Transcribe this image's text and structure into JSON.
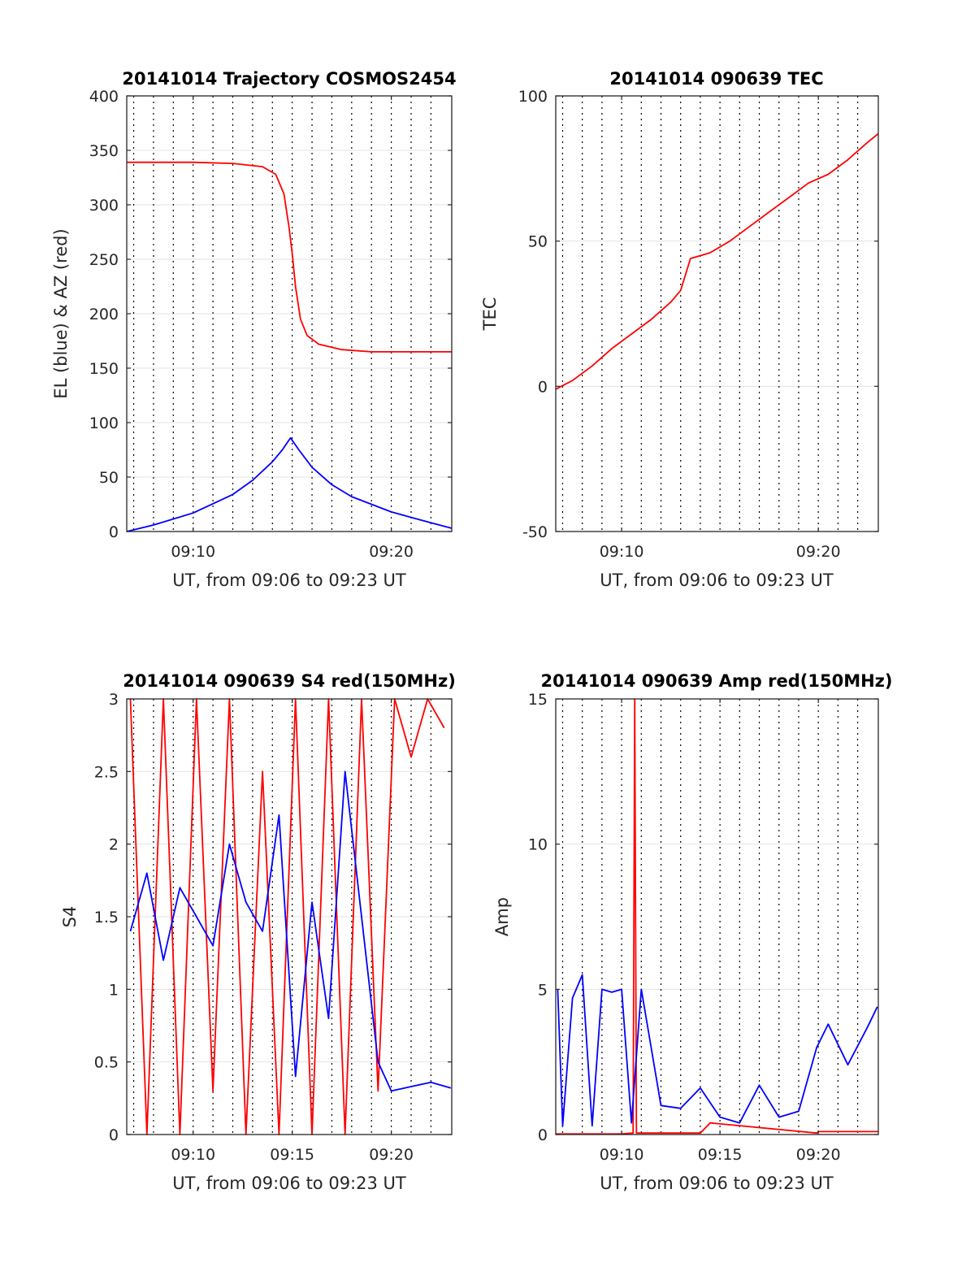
{
  "chart_data": [
    {
      "type": "line",
      "title": "20141014 Trajectory COSMOS2454",
      "xlabel": "UT, from 09:06 to 09:23 UT",
      "ylabel": "EL (blue) & AZ (red)",
      "xlim": [
        "09:06:39",
        "09:23:03"
      ],
      "ylim": [
        0,
        400
      ],
      "x_ticks": [
        "09:10",
        "09:20"
      ],
      "y_ticks": [
        "0",
        "50",
        "100",
        "150",
        "200",
        "250",
        "300",
        "350",
        "400"
      ],
      "grid": true,
      "series": [
        {
          "color": "#0000ff",
          "x": [
            "09:06:39",
            "09:08:00",
            "09:10:00",
            "09:12:00",
            "09:13:00",
            "09:14:00",
            "09:14:30",
            "09:14:55",
            "09:15:20",
            "09:16:00",
            "09:17:00",
            "09:18:00",
            "09:20:00",
            "09:22:00",
            "09:23:03"
          ],
          "values": [
            0,
            6,
            17,
            34,
            47,
            64,
            75,
            86,
            75,
            59,
            43,
            32,
            18,
            8,
            3
          ]
        },
        {
          "color": "#ff0000",
          "x": [
            "09:06:39",
            "09:10:00",
            "09:12:00",
            "09:13:30",
            "09:14:10",
            "09:14:35",
            "09:14:50",
            "09:15:00",
            "09:15:10",
            "09:15:25",
            "09:15:45",
            "09:16:20",
            "09:17:30",
            "09:19:00",
            "09:23:03"
          ],
          "values": [
            339,
            339,
            338,
            335,
            328,
            310,
            280,
            255,
            225,
            195,
            180,
            172,
            167,
            165,
            165
          ]
        }
      ]
    },
    {
      "type": "line",
      "title": "20141014 090639 TEC",
      "xlabel": "UT, from 09:06 to 09:23 UT",
      "ylabel": "TEC",
      "xlim": [
        "09:06:39",
        "09:23:03"
      ],
      "ylim": [
        -50,
        100
      ],
      "x_ticks": [
        "09:10",
        "09:20"
      ],
      "y_ticks": [
        "-50",
        "0",
        "50",
        "100"
      ],
      "grid": true,
      "series": [
        {
          "color": "#ff0000",
          "x": [
            "09:06:39",
            "09:07:30",
            "09:08:30",
            "09:09:30",
            "09:10:30",
            "09:11:30",
            "09:12:30",
            "09:13:00",
            "09:13:30",
            "09:14:30",
            "09:15:30",
            "09:16:30",
            "09:17:30",
            "09:18:30",
            "09:19:30",
            "09:20:30",
            "09:21:30",
            "09:22:30",
            "09:23:03"
          ],
          "values": [
            -1,
            2,
            7,
            13,
            18,
            23,
            29,
            33,
            44,
            46,
            50,
            55,
            60,
            65,
            70,
            73,
            78,
            84,
            87
          ]
        }
      ]
    },
    {
      "type": "line",
      "title": "20141014 090639 S4 red(150MHz)",
      "xlabel": "UT, from 09:06 to 09:23 UT",
      "ylabel": "S4",
      "xlim": [
        "09:06:39",
        "09:23:03"
      ],
      "ylim": [
        0,
        3
      ],
      "x_ticks": [
        "09:10",
        "09:15",
        "09:20"
      ],
      "y_ticks": [
        "0",
        "0.5",
        "1",
        "1.5",
        "2",
        "2.5",
        "3"
      ],
      "grid": true,
      "series": [
        {
          "color": "#ff0000",
          "x": [
            "09:06:50",
            "09:07:40",
            "09:08:30",
            "09:09:20",
            "09:10:10",
            "09:11:00",
            "09:11:50",
            "09:12:40",
            "09:13:30",
            "09:14:20",
            "09:15:10",
            "09:16:00",
            "09:16:50",
            "09:17:40",
            "09:18:30",
            "09:19:20",
            "09:20:10",
            "09:21:00",
            "09:21:50",
            "09:22:40"
          ],
          "values": [
            3,
            0,
            3,
            0,
            3,
            0.3,
            3,
            0,
            2.5,
            0,
            3,
            0,
            3,
            0,
            3,
            0.3,
            3,
            2.6,
            3,
            2.8
          ]
        },
        {
          "color": "#0000ff",
          "x": [
            "09:06:50",
            "09:07:40",
            "09:08:30",
            "09:09:20",
            "09:10:10",
            "09:11:00",
            "09:11:50",
            "09:12:40",
            "09:13:30",
            "09:14:20",
            "09:15:10",
            "09:16:00",
            "09:16:50",
            "09:17:40",
            "09:18:30",
            "09:19:20",
            "09:20:00",
            "09:21:00",
            "09:22:00",
            "09:23:00"
          ],
          "values": [
            1.4,
            1.8,
            1.2,
            1.7,
            1.5,
            1.3,
            2.0,
            1.6,
            1.4,
            2.2,
            0.4,
            1.6,
            0.8,
            2.5,
            1.5,
            0.5,
            0.3,
            0.33,
            0.36,
            0.32
          ]
        }
      ]
    },
    {
      "type": "line",
      "title": "20141014 090639 Amp red(150MHz)",
      "xlabel": "UT, from 09:06 to 09:23 UT",
      "ylabel": "Amp",
      "xlim": [
        "09:06:39",
        "09:23:03"
      ],
      "ylim": [
        0,
        15
      ],
      "x_ticks": [
        "09:10",
        "09:15",
        "09:20"
      ],
      "y_ticks": [
        "0",
        "5",
        "10",
        "15"
      ],
      "grid": true,
      "series": [
        {
          "color": "#ff0000",
          "x": [
            "09:06:39",
            "09:10:00",
            "09:10:35",
            "09:10:40",
            "09:10:45",
            "09:14:00",
            "09:14:30",
            "09:19:55",
            "09:20:00",
            "09:23:03"
          ],
          "values": [
            0.02,
            0.02,
            0.05,
            15,
            0.05,
            0.05,
            0.4,
            0.05,
            0.1,
            0.1
          ]
        },
        {
          "color": "#0000ff",
          "x": [
            "09:06:45",
            "09:07:00",
            "09:07:30",
            "09:08:00",
            "09:08:30",
            "09:09:00",
            "09:09:30",
            "09:10:00",
            "09:10:30",
            "09:11:00",
            "09:12:00",
            "09:13:00",
            "09:14:00",
            "09:15:00",
            "09:16:00",
            "09:17:00",
            "09:18:00",
            "09:19:00",
            "09:19:55",
            "09:20:30",
            "09:21:30",
            "09:22:30",
            "09:23:00"
          ],
          "values": [
            5.0,
            0.3,
            4.7,
            5.5,
            0.3,
            5.0,
            4.9,
            5.0,
            0.4,
            5.0,
            1.0,
            0.9,
            1.6,
            0.6,
            0.4,
            1.7,
            0.6,
            0.8,
            3.0,
            3.8,
            2.4,
            3.7,
            4.4
          ]
        }
      ]
    }
  ]
}
